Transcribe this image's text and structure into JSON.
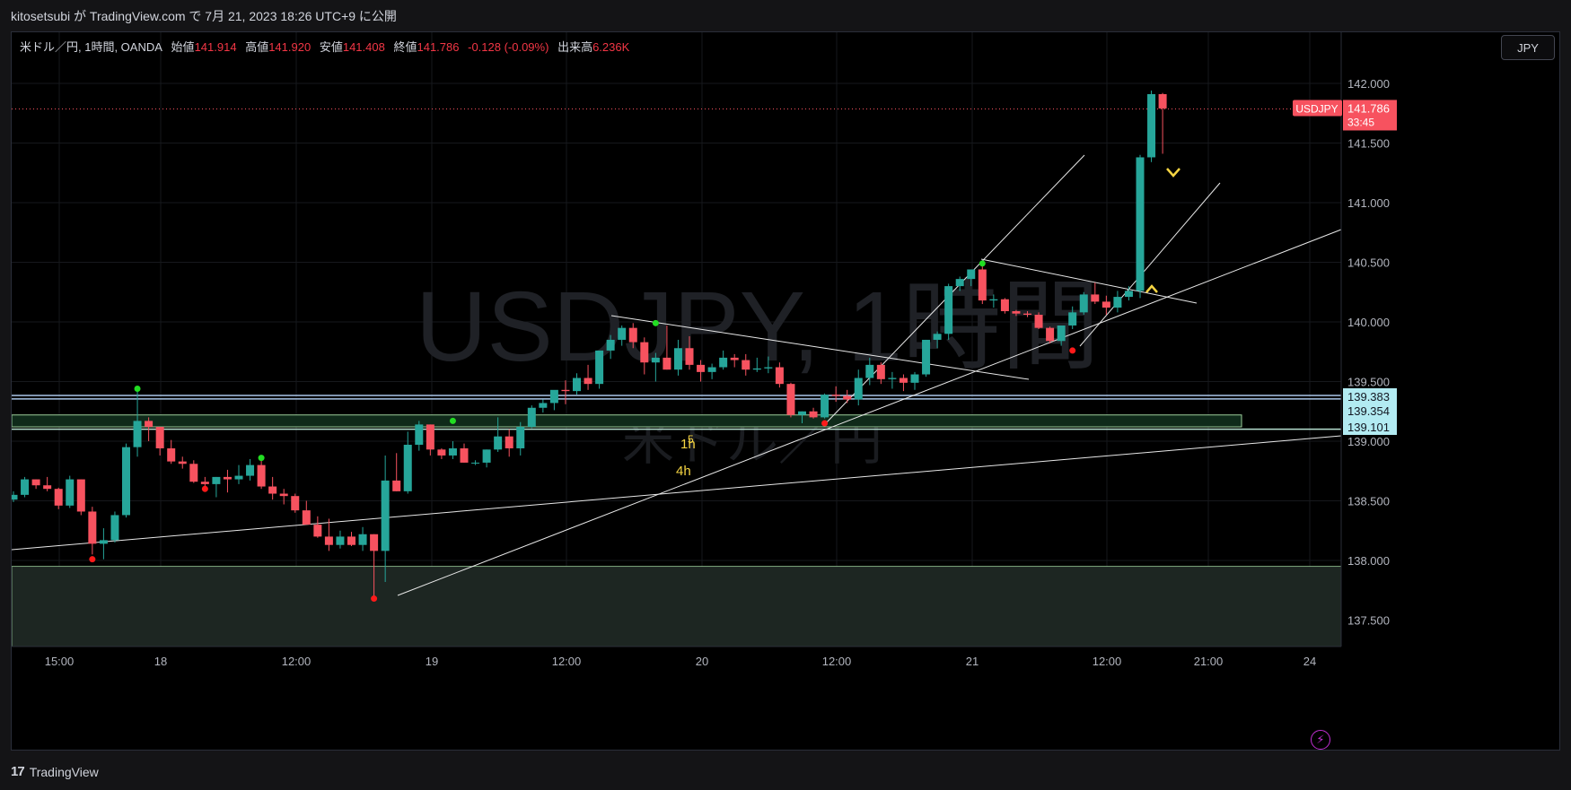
{
  "header": {
    "published_text": "kitosetsubi が TradingView.com で 7月 21, 2023 18:26 UTC+9 に公開"
  },
  "legend": {
    "symbol_text": "米ドル／円, 1時間, OANDA",
    "open_label": "始値",
    "open_value": "141.914",
    "high_label": "高値",
    "high_value": "141.920",
    "low_label": "安値",
    "low_value": "141.408",
    "close_label": "終値",
    "close_value": "141.786",
    "change_text": "-0.128 (-0.09%)",
    "volume_label": "出来高",
    "volume_value": "6.236K"
  },
  "currency_button": "JPY",
  "watermark": {
    "main": "USDJPY, 1時間",
    "sub": "米ドル／円"
  },
  "price_tag": {
    "symbol": "USDJPY",
    "price": "141.786",
    "countdown": "33:45"
  },
  "annotations": {
    "label_1h": "1h",
    "label_4h": "4h",
    "label_5": "5"
  },
  "level_tags": [
    "139.383",
    "139.354",
    "139.101"
  ],
  "footer": {
    "brand": "TradingView",
    "logo_mark": "17"
  },
  "colors": {
    "up": "#26a69a",
    "down": "#f7525f",
    "background": "#000000",
    "text": "#d1d4dc",
    "level_tag_bg": "#b2ebf2",
    "annotation": "#f5d442"
  },
  "icons": {
    "replay": "lightning-icon",
    "logo": "tradingview-logo-icon"
  },
  "chart_data": {
    "type": "candlestick",
    "symbol": "USDJPY",
    "interval": "1時間",
    "y_axis": {
      "ticks": [
        "142.000",
        "141.500",
        "141.000",
        "140.500",
        "140.000",
        "139.500",
        "139.000",
        "138.500",
        "138.000",
        "137.500"
      ],
      "range": [
        137.25,
        142.5
      ]
    },
    "x_axis": {
      "ticks": [
        "15:00",
        "18",
        "12:00",
        "19",
        "12:00",
        "20",
        "12:00",
        "21",
        "12:00",
        "21:00",
        "24"
      ]
    },
    "current_price": 141.786,
    "horizontal_levels": [
      139.383,
      139.354,
      139.101
    ],
    "candles": [
      [
        138.51,
        138.58,
        138.49,
        138.55
      ],
      [
        138.55,
        138.7,
        138.53,
        138.68
      ],
      [
        138.68,
        138.68,
        138.6,
        138.63
      ],
      [
        138.63,
        138.7,
        138.58,
        138.6
      ],
      [
        138.6,
        138.61,
        138.43,
        138.46
      ],
      [
        138.46,
        138.71,
        138.44,
        138.68
      ],
      [
        138.68,
        138.68,
        138.38,
        138.41
      ],
      [
        138.41,
        138.45,
        138.05,
        138.14
      ],
      [
        138.14,
        138.27,
        138.01,
        138.17
      ],
      [
        138.17,
        138.41,
        138.15,
        138.38
      ],
      [
        138.38,
        138.98,
        138.36,
        138.95
      ],
      [
        138.95,
        139.44,
        138.87,
        139.17
      ],
      [
        139.17,
        139.2,
        139.0,
        139.12
      ],
      [
        139.12,
        139.12,
        138.88,
        138.94
      ],
      [
        138.94,
        139.01,
        138.81,
        138.83
      ],
      [
        138.83,
        138.87,
        138.77,
        138.81
      ],
      [
        138.81,
        138.84,
        138.65,
        138.66
      ],
      [
        138.66,
        138.7,
        138.6,
        138.64
      ],
      [
        138.64,
        138.7,
        138.53,
        138.7
      ],
      [
        138.7,
        138.76,
        138.57,
        138.68
      ],
      [
        138.68,
        138.8,
        138.64,
        138.71
      ],
      [
        138.71,
        138.85,
        138.67,
        138.8
      ],
      [
        138.8,
        138.86,
        138.6,
        138.62
      ],
      [
        138.62,
        138.7,
        138.51,
        138.56
      ],
      [
        138.56,
        138.6,
        138.47,
        138.54
      ],
      [
        138.54,
        138.56,
        138.4,
        138.42
      ],
      [
        138.42,
        138.5,
        138.3,
        138.3
      ],
      [
        138.3,
        138.37,
        138.19,
        138.2
      ],
      [
        138.2,
        138.35,
        138.08,
        138.13
      ],
      [
        138.13,
        138.25,
        138.1,
        138.2
      ],
      [
        138.2,
        138.24,
        138.12,
        138.13
      ],
      [
        138.13,
        138.28,
        138.08,
        138.22
      ],
      [
        138.22,
        138.22,
        137.68,
        138.08
      ],
      [
        138.08,
        138.88,
        137.82,
        138.67
      ],
      [
        138.67,
        138.9,
        138.58,
        138.58
      ],
      [
        138.58,
        139.08,
        138.56,
        138.97
      ],
      [
        138.97,
        139.17,
        138.92,
        139.14
      ],
      [
        139.14,
        139.14,
        138.88,
        138.93
      ],
      [
        138.93,
        138.94,
        138.85,
        138.88
      ],
      [
        138.88,
        139.0,
        138.85,
        138.94
      ],
      [
        138.94,
        138.98,
        138.82,
        138.82
      ],
      [
        138.82,
        138.84,
        138.8,
        138.82
      ],
      [
        138.82,
        138.93,
        138.78,
        138.93
      ],
      [
        138.93,
        139.2,
        138.91,
        139.04
      ],
      [
        139.04,
        139.1,
        138.87,
        138.94
      ],
      [
        138.94,
        139.16,
        138.88,
        139.12
      ],
      [
        139.12,
        139.3,
        139.11,
        139.28
      ],
      [
        139.28,
        139.35,
        139.24,
        139.32
      ],
      [
        139.32,
        139.42,
        139.26,
        139.43
      ],
      [
        139.43,
        139.51,
        139.31,
        139.42
      ],
      [
        139.42,
        139.57,
        139.39,
        139.53
      ],
      [
        139.53,
        139.64,
        139.43,
        139.48
      ],
      [
        139.48,
        139.75,
        139.44,
        139.76
      ],
      [
        139.76,
        139.89,
        139.69,
        139.85
      ],
      [
        139.85,
        139.97,
        139.8,
        139.95
      ],
      [
        139.95,
        139.99,
        139.78,
        139.83
      ],
      [
        139.83,
        139.87,
        139.56,
        139.66
      ],
      [
        139.66,
        139.74,
        139.5,
        139.7
      ],
      [
        139.7,
        139.97,
        139.6,
        139.6
      ],
      [
        139.6,
        139.85,
        139.55,
        139.78
      ],
      [
        139.78,
        139.88,
        139.6,
        139.64
      ],
      [
        139.64,
        139.68,
        139.5,
        139.58
      ],
      [
        139.58,
        139.65,
        139.52,
        139.62
      ],
      [
        139.62,
        139.76,
        139.6,
        139.7
      ],
      [
        139.7,
        139.73,
        139.62,
        139.68
      ],
      [
        139.68,
        139.73,
        139.55,
        139.6
      ],
      [
        139.6,
        139.7,
        139.58,
        139.61
      ],
      [
        139.61,
        139.71,
        139.57,
        139.62
      ],
      [
        139.62,
        139.66,
        139.45,
        139.48
      ],
      [
        139.48,
        139.49,
        139.2,
        139.22
      ],
      [
        139.22,
        139.25,
        139.15,
        139.25
      ],
      [
        139.25,
        139.28,
        139.19,
        139.2
      ],
      [
        139.2,
        139.4,
        139.19,
        139.39
      ],
      [
        139.39,
        139.46,
        139.33,
        139.38
      ],
      [
        139.38,
        139.43,
        139.32,
        139.35
      ],
      [
        139.35,
        139.6,
        139.3,
        139.53
      ],
      [
        139.53,
        139.7,
        139.47,
        139.64
      ],
      [
        139.64,
        139.66,
        139.48,
        139.52
      ],
      [
        139.52,
        139.58,
        139.44,
        139.53
      ],
      [
        139.53,
        139.56,
        139.42,
        139.49
      ],
      [
        139.49,
        139.58,
        139.43,
        139.56
      ],
      [
        139.56,
        139.85,
        139.54,
        139.85
      ],
      [
        139.85,
        139.92,
        139.78,
        139.9
      ],
      [
        139.9,
        140.32,
        139.85,
        140.3
      ],
      [
        140.3,
        140.38,
        140.26,
        140.36
      ],
      [
        140.36,
        140.44,
        140.3,
        140.44
      ],
      [
        140.44,
        140.48,
        140.15,
        140.18
      ],
      [
        140.18,
        140.23,
        140.12,
        140.19
      ],
      [
        140.19,
        140.2,
        140.07,
        140.09
      ],
      [
        140.09,
        140.1,
        140.05,
        140.07
      ],
      [
        140.07,
        140.09,
        140.04,
        140.06
      ],
      [
        140.06,
        140.08,
        139.94,
        139.95
      ],
      [
        139.95,
        139.96,
        139.82,
        139.84
      ],
      [
        139.84,
        139.97,
        139.8,
        139.97
      ],
      [
        139.97,
        140.13,
        139.94,
        140.08
      ],
      [
        140.08,
        140.25,
        140.06,
        140.23
      ],
      [
        140.23,
        140.33,
        140.15,
        140.17
      ],
      [
        140.17,
        140.22,
        140.06,
        140.12
      ],
      [
        140.12,
        140.26,
        140.08,
        140.21
      ],
      [
        140.21,
        140.3,
        140.18,
        140.26
      ],
      [
        140.26,
        141.4,
        140.2,
        141.38
      ],
      [
        141.38,
        141.94,
        141.34,
        141.91
      ],
      [
        141.91,
        141.92,
        141.41,
        141.79
      ]
    ]
  }
}
